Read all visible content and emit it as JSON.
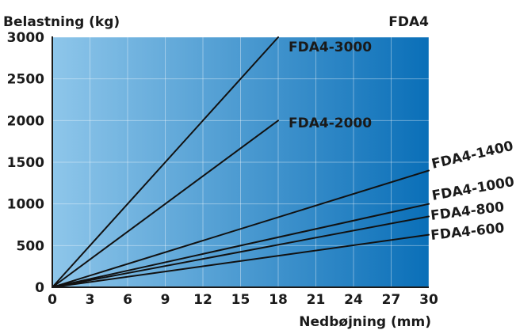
{
  "chart_data": {
    "type": "line",
    "title": "FDA4",
    "xlabel": "Nedbøjning (mm)",
    "ylabel": "Belastning (kg)",
    "xlim": [
      0,
      30
    ],
    "ylim": [
      0,
      3000
    ],
    "x_ticks": [
      "0",
      "3",
      "6",
      "9",
      "12",
      "15",
      "18",
      "21",
      "24",
      "27",
      "30"
    ],
    "y_ticks": [
      "0",
      "500",
      "1000",
      "1500",
      "2000",
      "2500",
      "3000"
    ],
    "grid": true,
    "background_gradient": [
      "#8ec6ea",
      "#0a6fb8"
    ],
    "line_color": "#111111",
    "series": [
      {
        "name": "FDA4-3000",
        "x": [
          0,
          18
        ],
        "y": [
          0,
          3000
        ]
      },
      {
        "name": "FDA4-2000",
        "x": [
          0,
          18
        ],
        "y": [
          0,
          2000
        ]
      },
      {
        "name": "FDA4-1400",
        "x": [
          0,
          30
        ],
        "y": [
          0,
          1400
        ]
      },
      {
        "name": "FDA4-1000",
        "x": [
          0,
          30
        ],
        "y": [
          0,
          1000
        ]
      },
      {
        "name": "FDA4-800",
        "x": [
          0,
          30
        ],
        "y": [
          0,
          850
        ]
      },
      {
        "name": "FDA4-600",
        "x": [
          0,
          30
        ],
        "y": [
          0,
          630
        ]
      }
    ]
  }
}
